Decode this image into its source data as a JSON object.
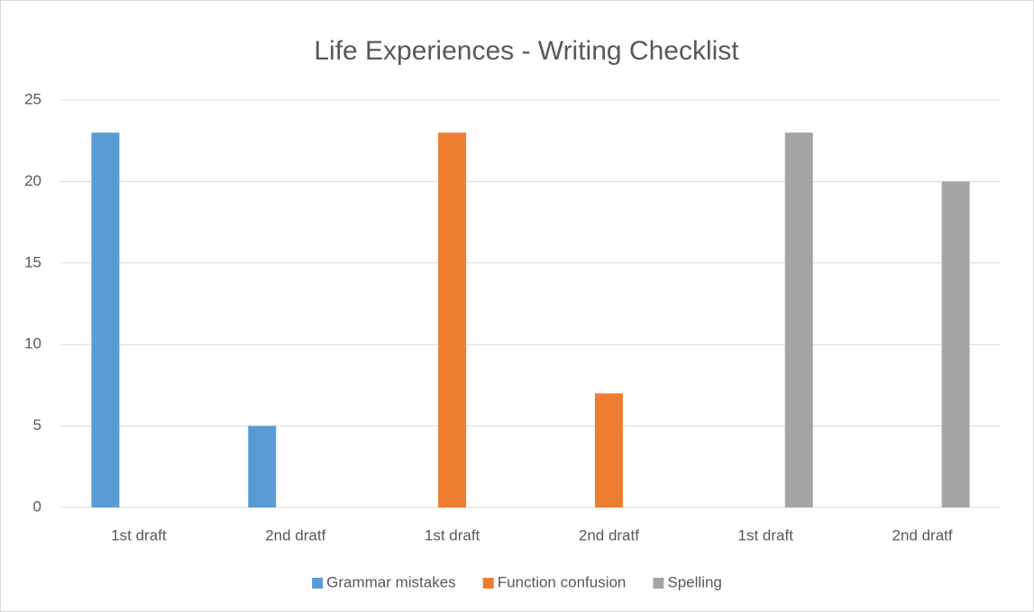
{
  "chart_data": {
    "type": "bar",
    "title": "Life Experiences - Writing Checklist",
    "categories": [
      "1st draft",
      "2nd dratf",
      "1st draft",
      "2nd dratf",
      "1st draft",
      "2nd dratf"
    ],
    "series": [
      {
        "name": "Grammar mistakes",
        "color": "#5b9bd5",
        "values": [
          23,
          5,
          null,
          null,
          null,
          null
        ]
      },
      {
        "name": "Function confusion",
        "color": "#ed7d31",
        "values": [
          null,
          null,
          23,
          7,
          null,
          null
        ]
      },
      {
        "name": "Spelling",
        "color": "#a5a5a5",
        "values": [
          null,
          null,
          null,
          null,
          23,
          20
        ]
      }
    ],
    "ylim": [
      0,
      25
    ],
    "yticks": [
      0,
      5,
      10,
      15,
      20,
      25
    ],
    "grid": true,
    "legend": "bottom"
  }
}
